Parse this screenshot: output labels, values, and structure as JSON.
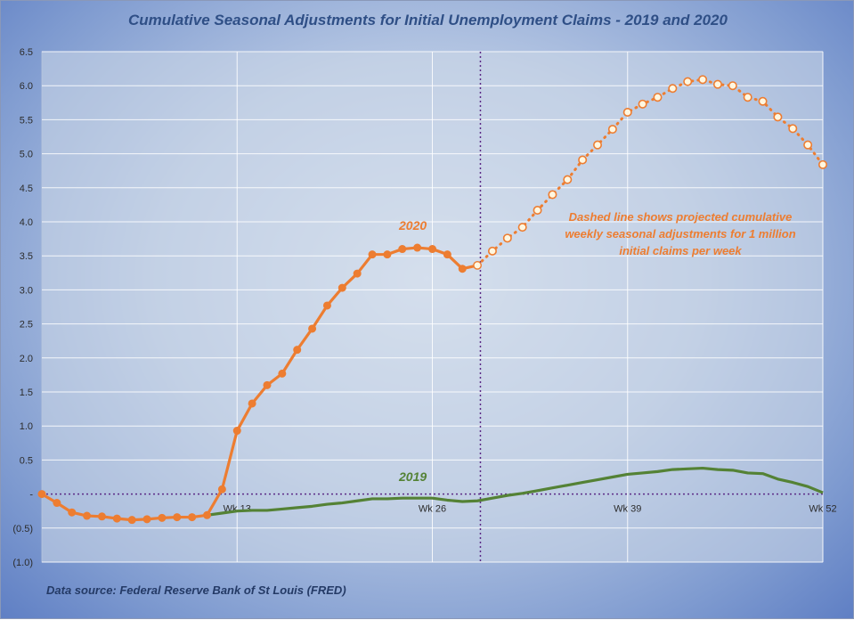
{
  "title": "Cumulative Seasonal Adjustments for Initial Unemployment Claims - 2019 and 2020",
  "source": "Data source: Federal Reserve Bank of St Louis (FRED)",
  "chart_data": {
    "type": "line",
    "title": "Cumulative Seasonal Adjustments for Initial Unemployment Claims - 2019 and 2020",
    "xlabel": "",
    "ylabel": "",
    "x_range": [
      0,
      52
    ],
    "ylim": [
      -1.0,
      6.5
    ],
    "y_ticks": [
      "6.5",
      "6.0",
      "5.5",
      "5.0",
      "4.5",
      "4.0",
      "3.5",
      "3.0",
      "2.5",
      "2.0",
      "1.5",
      "1.0",
      "0.5",
      "-",
      "(0.5)",
      "(1.0)"
    ],
    "y_tick_values": [
      6.5,
      6.0,
      5.5,
      5.0,
      4.5,
      4.0,
      3.5,
      3.0,
      2.5,
      2.0,
      1.5,
      1.0,
      0.5,
      0.0,
      -0.5,
      -1.0
    ],
    "x_ticks": [
      {
        "label": "Wk 13",
        "x": 13
      },
      {
        "label": "Wk 26",
        "x": 26
      },
      {
        "label": "Wk 39",
        "x": 39
      },
      {
        "label": "Wk 52",
        "x": 52
      }
    ],
    "grid": true,
    "divider_week": 29.2,
    "series": [
      {
        "name": "2020",
        "color": "#ed7d31",
        "style": "solid-markers",
        "x": [
          0,
          1,
          2,
          3,
          4,
          5,
          6,
          7,
          8,
          9,
          10,
          11,
          12,
          13,
          14,
          15,
          16,
          17,
          18,
          19,
          20,
          21,
          22,
          23,
          24,
          25,
          26,
          27,
          28,
          29
        ],
        "values": [
          0.0,
          -0.13,
          -0.27,
          -0.32,
          -0.33,
          -0.36,
          -0.38,
          -0.37,
          -0.35,
          -0.34,
          -0.34,
          -0.31,
          0.07,
          0.93,
          1.33,
          1.6,
          1.77,
          2.12,
          2.43,
          2.77,
          3.03,
          3.24,
          3.52,
          3.52,
          3.6,
          3.62,
          3.6,
          3.52,
          3.31,
          3.36
        ]
      },
      {
        "name": "2020 projected",
        "color": "#ed7d31",
        "style": "dotted-hollow-markers",
        "x": [
          29,
          30,
          31,
          32,
          33,
          34,
          35,
          36,
          37,
          38,
          39,
          40,
          41,
          42,
          43,
          44,
          45,
          46,
          47,
          48,
          49,
          50,
          51,
          52
        ],
        "values": [
          3.36,
          3.57,
          3.76,
          3.92,
          4.17,
          4.4,
          4.62,
          4.91,
          5.13,
          5.36,
          5.61,
          5.73,
          5.83,
          5.96,
          6.06,
          6.09,
          6.02,
          6.0,
          5.83,
          5.77,
          5.54,
          5.37,
          5.13,
          4.84
        ]
      },
      {
        "name": "2019",
        "color": "#548235",
        "style": "solid",
        "x": [
          11,
          12,
          13,
          14,
          15,
          16,
          17,
          18,
          19,
          20,
          21,
          22,
          23,
          24,
          25,
          26,
          27,
          28,
          29,
          30,
          31,
          32,
          33,
          34,
          35,
          36,
          37,
          38,
          39,
          40,
          41,
          42,
          43,
          44,
          45,
          46,
          47,
          48,
          49,
          50,
          51,
          52
        ],
        "values": [
          -0.31,
          -0.28,
          -0.25,
          -0.24,
          -0.24,
          -0.22,
          -0.2,
          -0.18,
          -0.15,
          -0.13,
          -0.1,
          -0.07,
          -0.07,
          -0.06,
          -0.06,
          -0.06,
          -0.09,
          -0.11,
          -0.1,
          -0.06,
          -0.02,
          0.01,
          0.05,
          0.09,
          0.13,
          0.17,
          0.21,
          0.25,
          0.29,
          0.31,
          0.33,
          0.36,
          0.37,
          0.38,
          0.36,
          0.35,
          0.31,
          0.3,
          0.22,
          0.17,
          0.11,
          0.02
        ]
      }
    ],
    "annotations": [
      {
        "text": "2020",
        "series": "2020"
      },
      {
        "text": "2019",
        "series": "2019"
      },
      {
        "text_lines": [
          "Dashed line shows projected cumulative",
          "weekly seasonal adjustments for 1 million",
          "initial claims per week"
        ]
      }
    ]
  }
}
